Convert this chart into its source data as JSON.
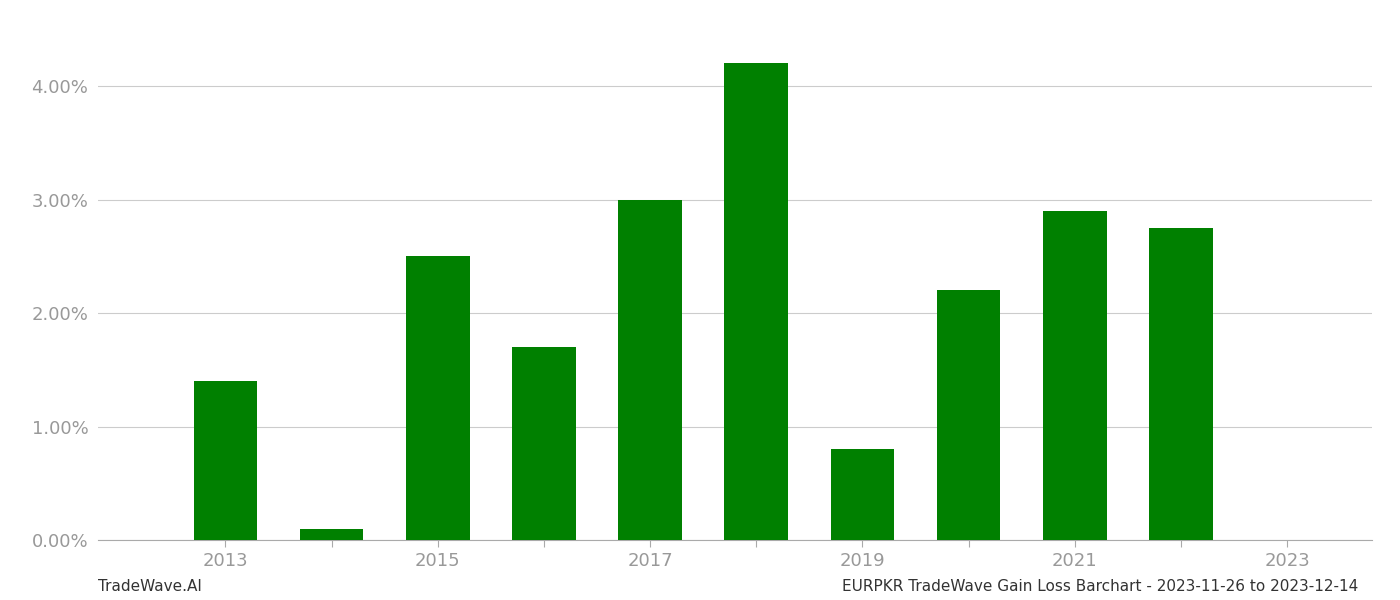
{
  "years": [
    2013,
    2014,
    2015,
    2016,
    2017,
    2018,
    2019,
    2020,
    2021,
    2022
  ],
  "values": [
    0.014,
    0.001,
    0.025,
    0.017,
    0.03,
    0.042,
    0.008,
    0.022,
    0.029,
    0.0275
  ],
  "bar_color": "#008000",
  "ylim": [
    0,
    0.046
  ],
  "yticks": [
    0.0,
    0.01,
    0.02,
    0.03,
    0.04
  ],
  "background_color": "#ffffff",
  "grid_color": "#cccccc",
  "tick_label_color": "#999999",
  "footer_left": "TradeWave.AI",
  "footer_right": "EURPKR TradeWave Gain Loss Barchart - 2023-11-26 to 2023-12-14",
  "footer_fontsize": 11,
  "bar_width": 0.6,
  "xtick_fontsize": 13,
  "ytick_fontsize": 13,
  "xticks_labeled": [
    2013,
    2015,
    2017,
    2019,
    2021,
    2023
  ],
  "xticks_all": [
    2013,
    2014,
    2015,
    2016,
    2017,
    2018,
    2019,
    2020,
    2021,
    2022,
    2023
  ],
  "xlim_left": 2011.8,
  "xlim_right": 2023.8
}
